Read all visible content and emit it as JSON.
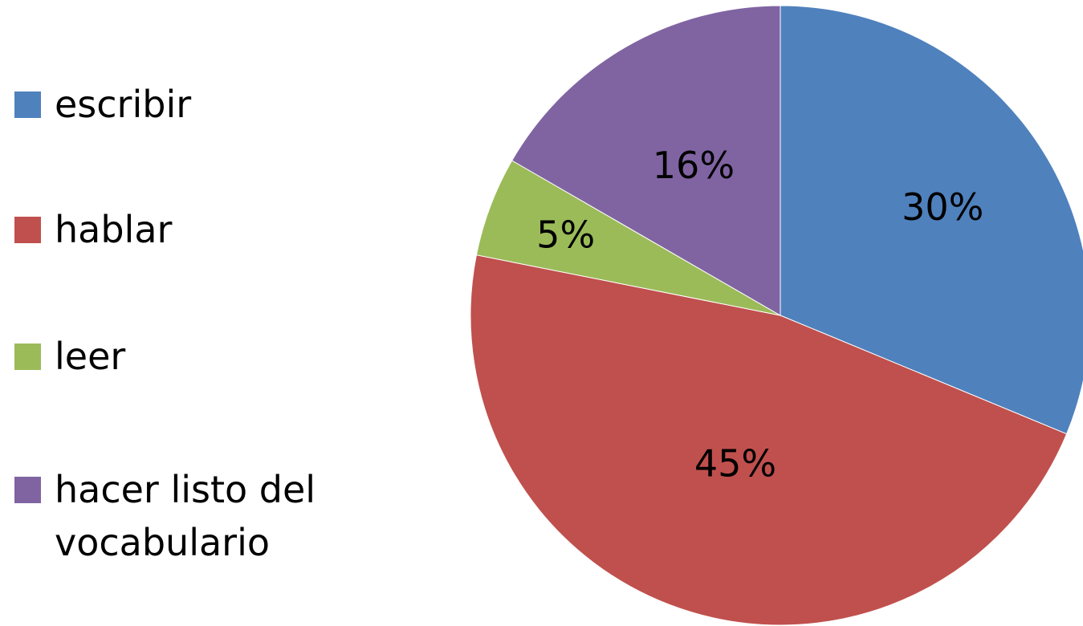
{
  "chart_data": {
    "type": "pie",
    "categories": [
      "escribir",
      "hablar",
      "leer",
      "hacer listo del vocabulario"
    ],
    "values": [
      30,
      45,
      5,
      16
    ],
    "value_labels": [
      "30%",
      "45%",
      "5%",
      "16%"
    ],
    "colors": [
      "#4f81bd",
      "#c0504d",
      "#9bbb59",
      "#8064a2"
    ],
    "start": "12 o'clock, clockwise",
    "legend_position": "left",
    "title": ""
  }
}
